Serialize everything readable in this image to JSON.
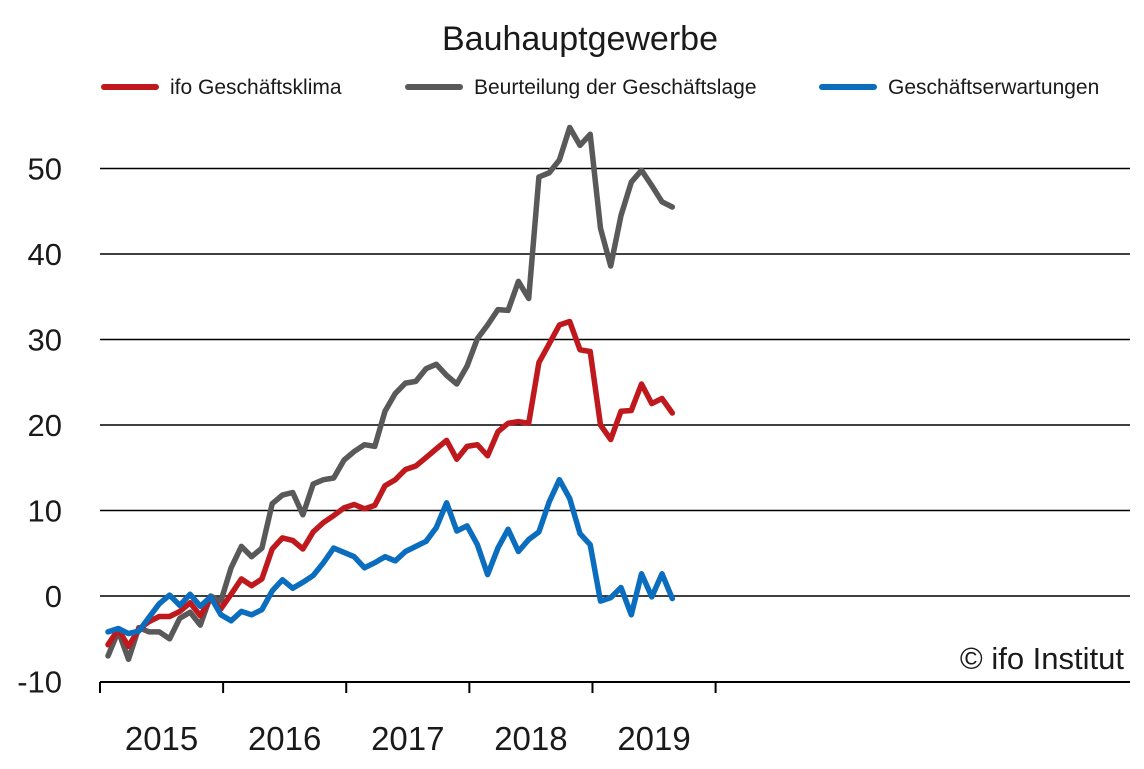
{
  "chart_data": {
    "type": "line",
    "title": "Bauhauptgewerbe",
    "credit": "© ifo Institut",
    "xlabel": "",
    "ylabel": "",
    "ylim": [
      -10,
      55
    ],
    "yticks": [
      50,
      40,
      30,
      20,
      10,
      0,
      -10
    ],
    "year_labels": [
      "2015",
      "2016",
      "2017",
      "2018",
      "2019"
    ],
    "x_start": "2015-01",
    "x_range_months": [
      0,
      60
    ],
    "grid": "horizontal",
    "legend_position": "top",
    "series": [
      {
        "name": "ifo Geschäftsklima",
        "color": "#c0191d",
        "values": [
          -5.7,
          -3.9,
          -5.9,
          -3.9,
          -3.0,
          -2.4,
          -2.4,
          -1.8,
          -0.8,
          -2.3,
          -0.3,
          -1.5,
          0.2,
          2.0,
          1.2,
          2.0,
          5.5,
          6.8,
          6.5,
          5.5,
          7.5,
          8.6,
          9.4,
          10.3,
          10.7,
          10.2,
          10.6,
          12.9,
          13.6,
          14.8,
          15.2,
          16.2,
          17.2,
          18.2,
          16.0,
          17.5,
          17.7,
          16.4,
          19.2,
          20.2,
          20.4,
          20.2,
          27.3,
          29.5,
          31.7,
          32.1,
          28.8,
          28.6,
          20.0,
          18.3,
          21.6,
          21.7,
          24.8,
          22.5,
          23.1,
          21.4
        ]
      },
      {
        "name": "Beurteilung der Geschäftslage",
        "color": "#595959",
        "values": [
          -7.0,
          -4.1,
          -7.4,
          -3.7,
          -4.2,
          -4.2,
          -5.0,
          -2.6,
          -1.9,
          -3.4,
          0.0,
          -0.6,
          3.3,
          5.8,
          4.6,
          5.6,
          10.8,
          11.8,
          12.1,
          9.5,
          13.1,
          13.6,
          13.8,
          15.9,
          16.9,
          17.7,
          17.5,
          21.6,
          23.7,
          24.9,
          25.1,
          26.6,
          27.1,
          25.8,
          24.8,
          26.9,
          30.1,
          31.7,
          33.5,
          33.4,
          36.8,
          34.8,
          49.0,
          49.5,
          51.0,
          54.8,
          52.7,
          54.0,
          43.0,
          38.6,
          44.5,
          48.4,
          49.8,
          48.0,
          46.1,
          45.5
        ]
      },
      {
        "name": "Geschäftserwartungen",
        "color": "#0a6dbe",
        "values": [
          -4.2,
          -3.8,
          -4.4,
          -4.1,
          -2.5,
          -0.9,
          0.1,
          -1.1,
          0.2,
          -1.2,
          -0.1,
          -2.2,
          -2.9,
          -1.8,
          -2.2,
          -1.6,
          0.6,
          1.9,
          0.9,
          1.6,
          2.4,
          3.9,
          5.6,
          5.1,
          4.6,
          3.3,
          3.9,
          4.6,
          4.1,
          5.2,
          5.8,
          6.4,
          8.0,
          10.9,
          7.6,
          8.2,
          6.0,
          2.5,
          5.6,
          7.8,
          5.2,
          6.6,
          7.5,
          11.0,
          13.6,
          11.4,
          7.3,
          6.0,
          -0.6,
          -0.2,
          1.0,
          -2.2,
          2.6,
          -0.1,
          2.6,
          -0.3
        ]
      }
    ]
  }
}
